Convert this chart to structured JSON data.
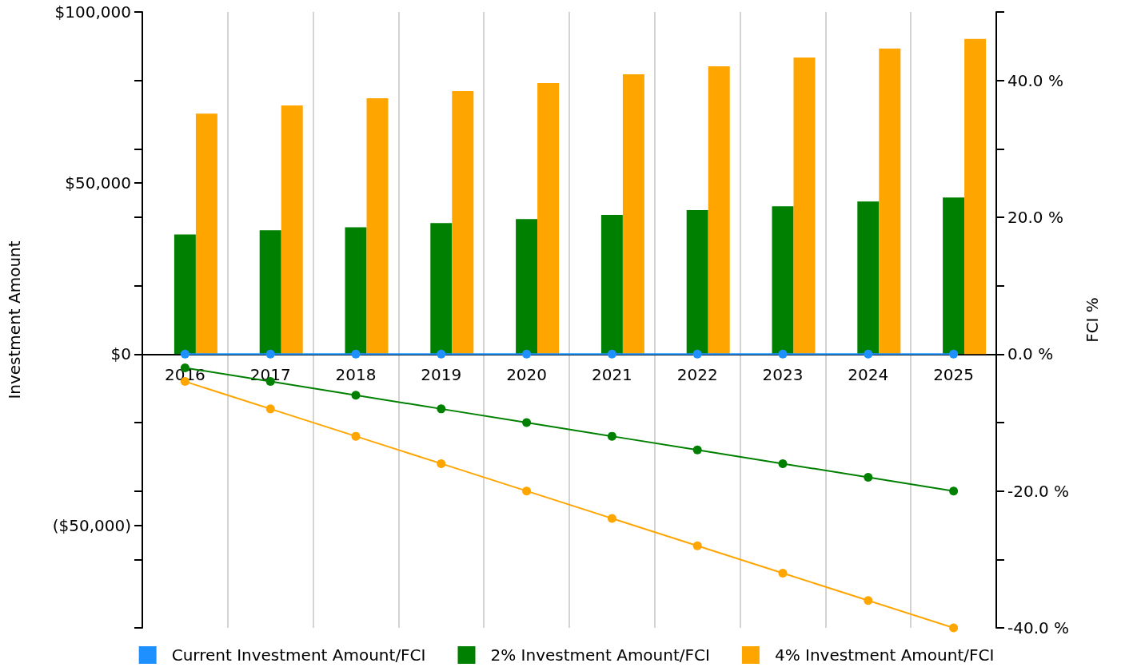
{
  "chart_data": {
    "type": "bar",
    "ylabel": "Investment Amount",
    "y2label": "FCI %",
    "categories": [
      "2016",
      "2017",
      "2018",
      "2019",
      "2020",
      "2021",
      "2022",
      "2023",
      "2024",
      "2025"
    ],
    "series": [
      {
        "name": "Current Investment Amount/FCI",
        "color": "#1e90ff",
        "values": [
          0,
          0,
          0,
          0,
          0,
          0,
          0,
          0,
          0,
          0
        ]
      },
      {
        "name": "2% Investment Amount/FCI",
        "color": "#008000",
        "values": [
          35000,
          36200,
          37100,
          38300,
          39500,
          40700,
          42100,
          43200,
          44600,
          45800
        ]
      },
      {
        "name": "4% Investment Amount/FCI",
        "color": "#ffa500",
        "values": [
          70300,
          72700,
          74800,
          76900,
          79200,
          81800,
          84100,
          86700,
          89300,
          92100
        ]
      },
      {
        "type": "line",
        "axis": "y2",
        "color": "#1e90ff",
        "values": [
          0,
          0,
          0,
          0,
          0,
          0,
          0,
          0,
          0,
          0
        ]
      },
      {
        "type": "line",
        "axis": "y2",
        "color": "#008000",
        "values": [
          -2,
          -4,
          -6,
          -8,
          -10,
          -12,
          -14,
          -16,
          -18,
          -20
        ]
      },
      {
        "type": "line",
        "axis": "y2",
        "color": "#ffa500",
        "values": [
          -4,
          -8,
          -12,
          -16,
          -20,
          -24,
          -28,
          -32,
          -36,
          -40
        ]
      }
    ],
    "ylim": [
      -80000,
      100000
    ],
    "yticks": [
      {
        "value": 100000,
        "label": "$100,000"
      },
      {
        "value": 80000,
        "label": null
      },
      {
        "value": 60000,
        "label": null
      },
      {
        "value": 50000,
        "label": "$50,000"
      },
      {
        "value": 40000,
        "label": null
      },
      {
        "value": 20000,
        "label": null
      },
      {
        "value": 0,
        "label": "$0"
      },
      {
        "value": -20000,
        "label": null
      },
      {
        "value": -40000,
        "label": null
      },
      {
        "value": -50000,
        "label": "($50,000)"
      },
      {
        "value": -60000,
        "label": null
      },
      {
        "value": -80000,
        "label": null
      }
    ],
    "y2lim": [
      -40,
      50
    ],
    "y2ticks": [
      {
        "value": 50,
        "label": null
      },
      {
        "value": 40,
        "label": "40.0 %"
      },
      {
        "value": 30,
        "label": null
      },
      {
        "value": 20,
        "label": "20.0 %"
      },
      {
        "value": 10,
        "label": null
      },
      {
        "value": 0,
        "label": "0.0 %"
      },
      {
        "value": -10,
        "label": null
      },
      {
        "value": -20,
        "label": "-20.0 %"
      },
      {
        "value": -30,
        "label": null
      },
      {
        "value": -40,
        "label": "-40.0 %"
      }
    ],
    "grid": "x",
    "legend": "bottom",
    "marker": "circle",
    "line_style": "solid"
  }
}
